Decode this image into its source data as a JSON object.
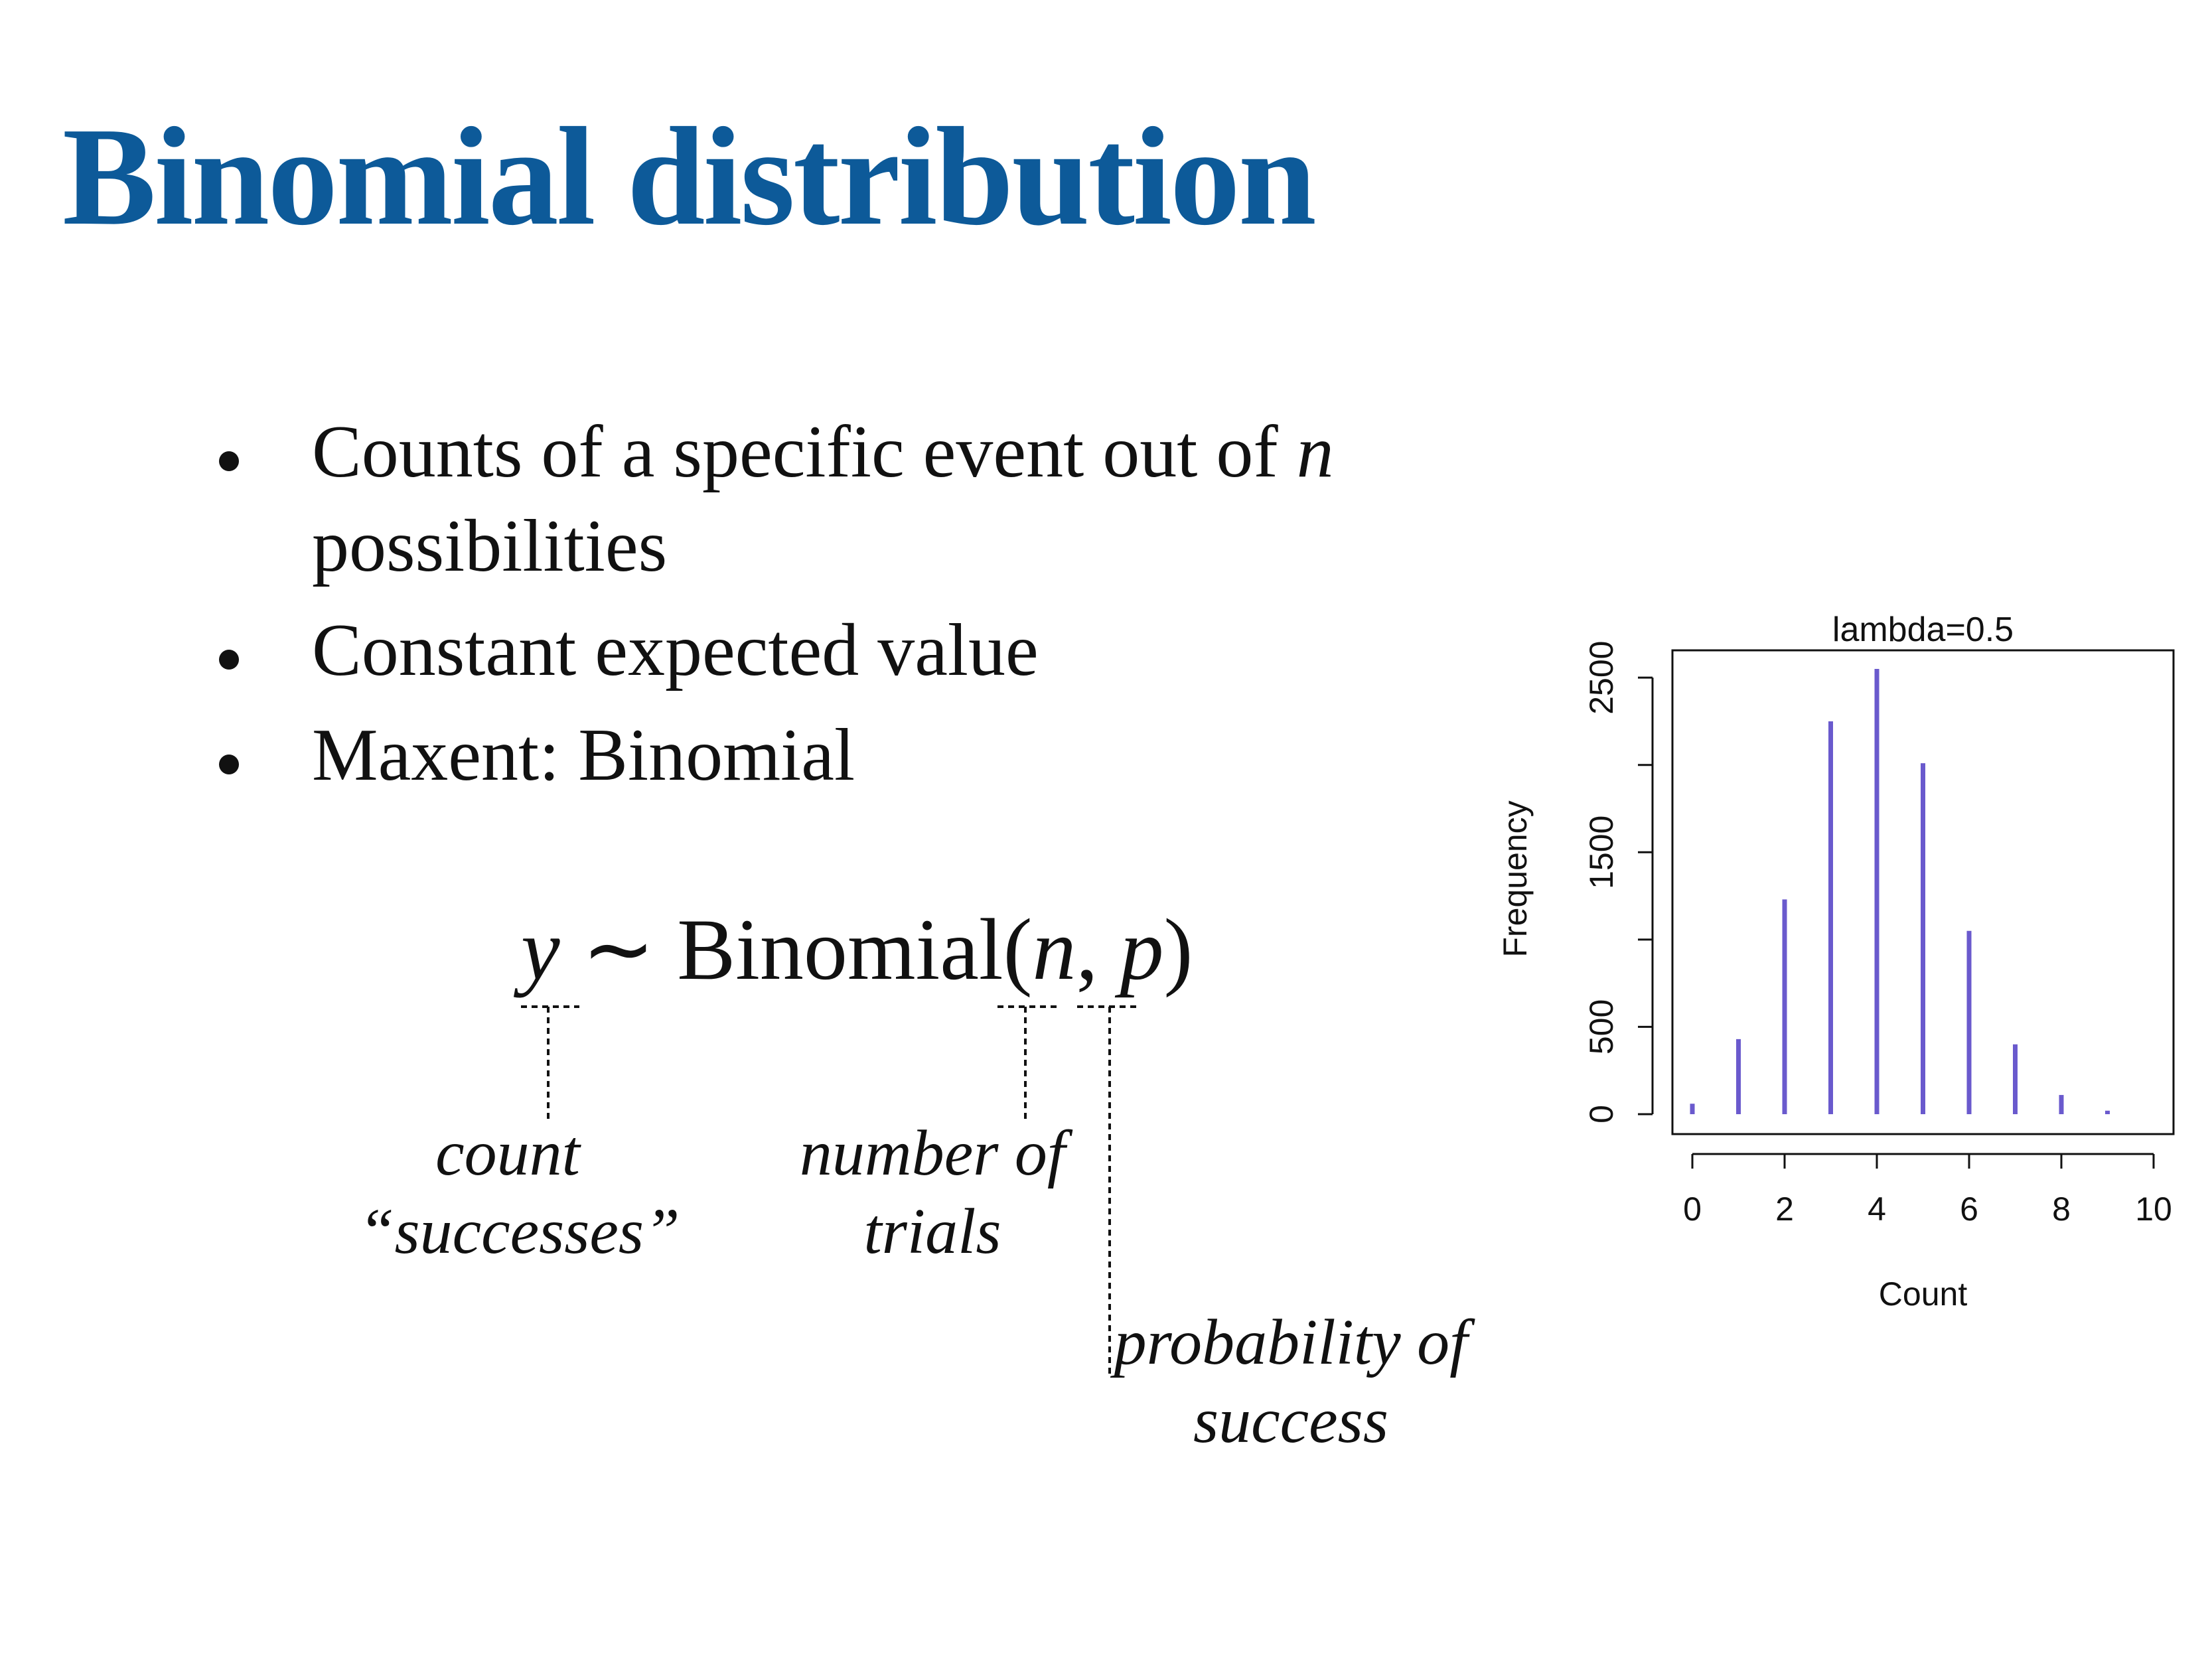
{
  "slide": {
    "title": "Binomial distribution",
    "bullets": [
      {
        "text": "Counts of a specific event out of ",
        "italic": "n",
        "text2": "possibilities"
      },
      {
        "text": "Constant expected value"
      },
      {
        "text": "Maxent: Binomial"
      }
    ]
  },
  "equation": {
    "y": "y",
    "tilde": " ∼ ",
    "dist": "Binomial",
    "open": "(",
    "n": "n",
    "comma": ", ",
    "p": "p",
    "close": ")"
  },
  "annotations": {
    "count": [
      "count",
      "“successes”"
    ],
    "trials": [
      "number of",
      "trials"
    ],
    "probability": [
      "probability of",
      "success"
    ]
  },
  "colors": {
    "title": "#0d5a99",
    "bars": "#6a5acd",
    "text": "#111111"
  },
  "chart_data": {
    "type": "bar",
    "title": "lambda=0.5",
    "xlabel": "Count",
    "ylabel": "Frequency",
    "x": [
      0,
      1,
      2,
      3,
      4,
      5,
      6,
      7,
      8,
      9
    ],
    "values": [
      60,
      430,
      1230,
      2250,
      2550,
      2010,
      1050,
      400,
      110,
      20
    ],
    "xlim": [
      0,
      10
    ],
    "ylim": [
      0,
      2550
    ],
    "xticks": [
      0,
      2,
      4,
      6,
      8,
      10
    ],
    "yticks": [
      0,
      500,
      1500,
      2500
    ],
    "grid": false
  }
}
